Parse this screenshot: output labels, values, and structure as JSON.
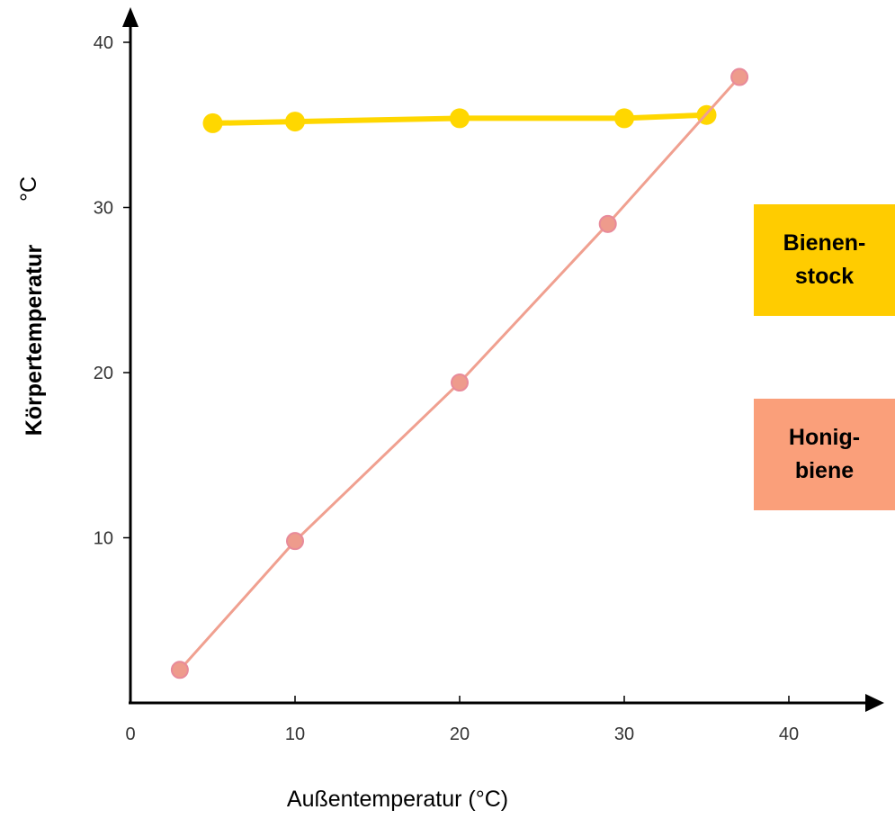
{
  "chart_data": {
    "type": "line",
    "xlabel": "Außentemperatur  (°C)",
    "ylabel": "Körpertemperatur",
    "ylabel_unit": "°C",
    "xlim": [
      0,
      45
    ],
    "ylim": [
      0,
      42
    ],
    "x_ticks": [
      "0",
      "10",
      "20",
      "30",
      "40"
    ],
    "y_ticks": [
      "10",
      "20",
      "30",
      "40"
    ],
    "grid": false,
    "series": [
      {
        "name": "Bienenstock",
        "color": "#FFD700",
        "x": [
          5,
          10,
          20,
          30,
          35
        ],
        "y": [
          35.1,
          35.2,
          35.4,
          35.4,
          35.6
        ]
      },
      {
        "name": "Honigbiene",
        "color": "#F0A090",
        "x": [
          3,
          10,
          20,
          29,
          37
        ],
        "y": [
          2,
          9.8,
          19.4,
          29,
          37.9
        ]
      }
    ]
  },
  "legend": {
    "hive": {
      "line1": "Bienen-",
      "line2": "stock",
      "color": "#FFCC00"
    },
    "bee": {
      "line1": "Honig-",
      "line2": "biene",
      "color": "#FA9F7A"
    }
  }
}
